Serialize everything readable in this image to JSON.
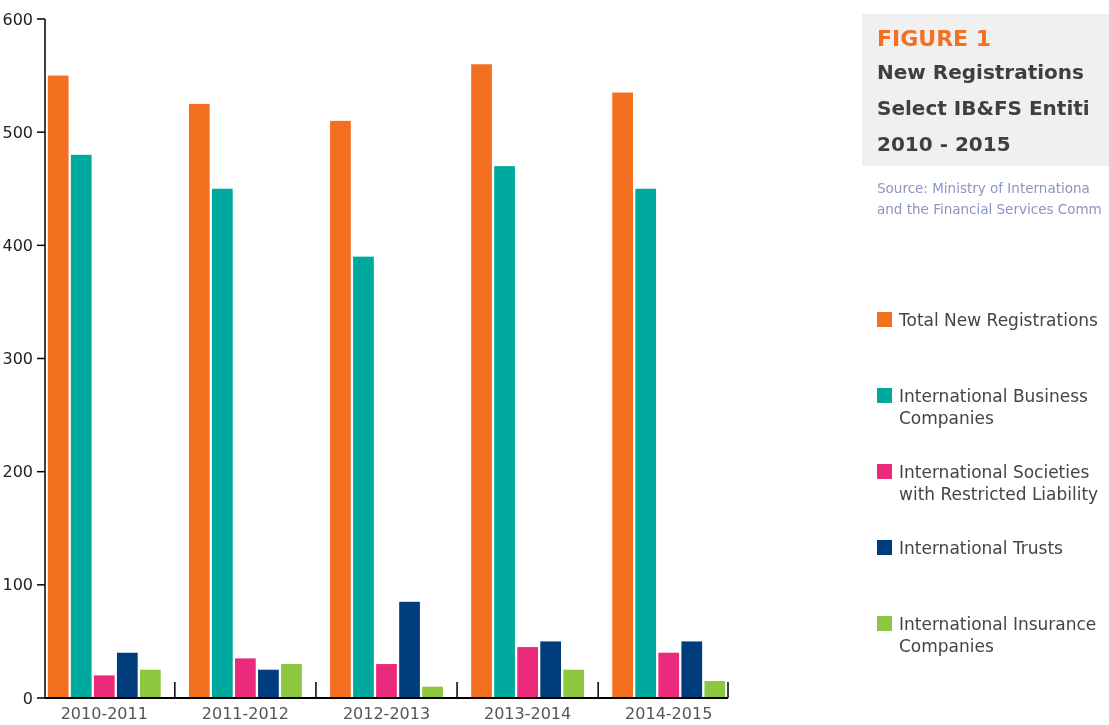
{
  "chart_data": {
    "type": "bar",
    "title": "FIGURE 1",
    "subtitle": "New Registrations\nSelect IB&FS Entiti\n2010 - 2015",
    "annotations": [
      "Source: Ministry of Internationa",
      "and the Financial Services Comm"
    ],
    "categories": [
      "2010-2011",
      "2011-2012",
      "2012-2013",
      "2013-2014",
      "2014-2015"
    ],
    "series": [
      {
        "name": "Total New Registrations",
        "color": "#f37021",
        "values": [
          550,
          525,
          510,
          560,
          535
        ]
      },
      {
        "name": "International Business Companies",
        "color": "#00a99d",
        "values": [
          480,
          450,
          390,
          470,
          450
        ]
      },
      {
        "name": "International Societies with Restricted Liability",
        "color": "#ec2a7b",
        "values": [
          20,
          35,
          30,
          45,
          40
        ]
      },
      {
        "name": "International Trusts",
        "color": "#003d7c",
        "values": [
          40,
          25,
          85,
          50,
          50
        ]
      },
      {
        "name": "International Insurance Companies",
        "color": "#8dc63f",
        "values": [
          25,
          30,
          10,
          25,
          15
        ]
      }
    ],
    "ylim": [
      0,
      600
    ],
    "yticks": [
      0,
      100,
      200,
      300,
      400,
      500,
      600
    ],
    "grid": false,
    "legend": "right"
  }
}
